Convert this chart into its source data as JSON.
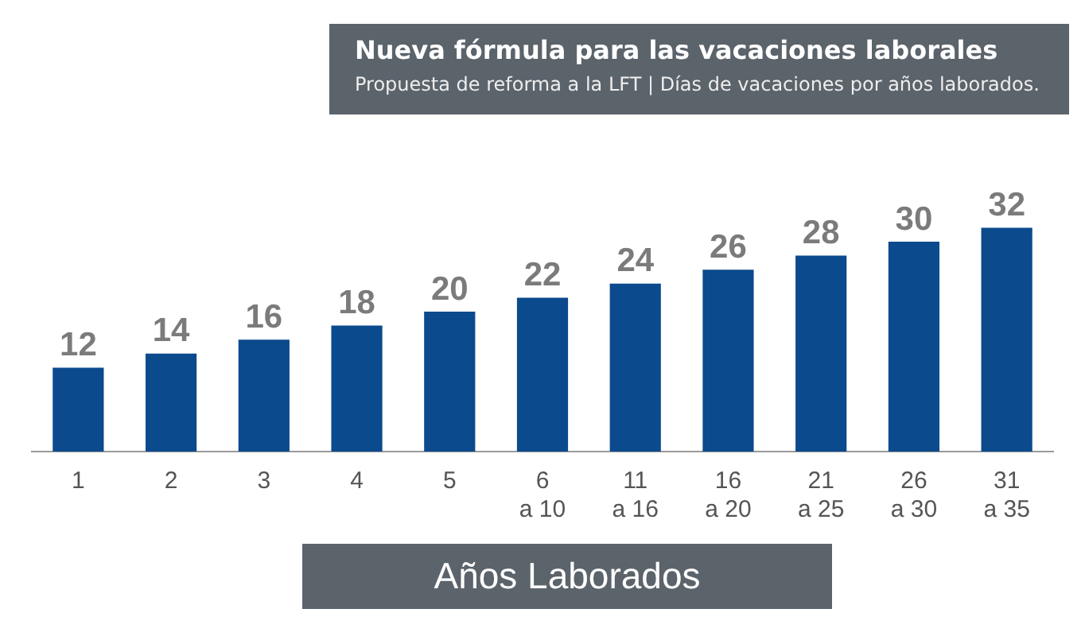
{
  "chart_data": {
    "type": "bar",
    "title": "Nueva fórmula para las vacaciones laborales",
    "subtitle": "Propuesta de reforma a la LFT | Días de vacaciones por años laborados.",
    "xlabel": "Años Laborados",
    "categories": [
      "1",
      "2",
      "3",
      "4",
      "5",
      "6 a 10",
      "11 a 16",
      "16 a 20",
      "21 a 25",
      "26 a 30",
      "31 a 35"
    ],
    "values": [
      12,
      14,
      16,
      18,
      20,
      22,
      24,
      26,
      28,
      30,
      32
    ],
    "color": "#0b4a8c",
    "data_labels": true,
    "tick_labels": "x",
    "grid": false,
    "legend": false
  }
}
